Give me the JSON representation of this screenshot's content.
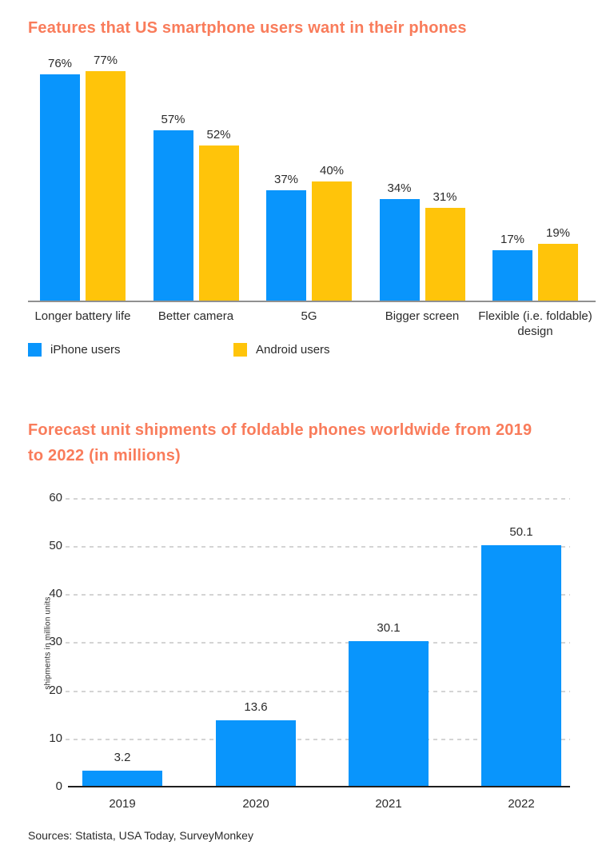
{
  "colors": {
    "accent_orange": "#f97c5b",
    "iphone_blue": "#0995fc",
    "android_yellow": "#ffc40a",
    "text_dark": "#2b2b2b",
    "axis_gray_chart1": "#909090",
    "axis_dark_chart2": "#1f1f1f",
    "gridline_gray": "#d4d4d4"
  },
  "chart_data": [
    {
      "type": "bar",
      "title": "Features that US smartphone users want in their phones",
      "categories": [
        "Longer battery life",
        "Better camera",
        "5G",
        "Bigger screen",
        "Flexible (i.e. foldable) design"
      ],
      "series": [
        {
          "name": "iPhone users",
          "color": "#0995fc",
          "values": [
            76,
            57,
            37,
            34,
            17
          ]
        },
        {
          "name": "Android users",
          "color": "#ffc40a",
          "values": [
            77,
            52,
            40,
            31,
            19
          ]
        }
      ],
      "value_suffix": "%",
      "ylim": [
        0,
        80
      ],
      "grid": false,
      "legend_position": "bottom"
    },
    {
      "type": "bar",
      "title": "Forecast unit shipments of foldable phones worldwide from 2019 to 2022 (in millions)",
      "categories": [
        "2019",
        "2020",
        "2021",
        "2022"
      ],
      "values": [
        3.2,
        13.6,
        30.1,
        50.1
      ],
      "bar_color": "#0995fc",
      "ylabel": "shipments in million units",
      "yticks": [
        0,
        10,
        20,
        30,
        40,
        50,
        60
      ],
      "ylim": [
        0,
        60
      ],
      "grid": true,
      "legend_position": "none"
    }
  ],
  "footer": {
    "sources": "Sources: Statista, USA Today, SurveyMonkey"
  }
}
